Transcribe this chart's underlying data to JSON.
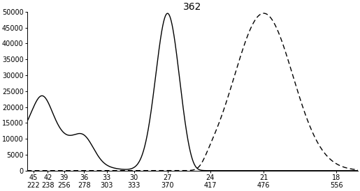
{
  "title": "362",
  "background_color": "#ffffff",
  "line_color": "#000000",
  "ylim": [
    0,
    50000
  ],
  "yticks": [
    0,
    5000,
    10000,
    15000,
    20000,
    25000,
    30000,
    35000,
    40000,
    45000,
    50000
  ],
  "xticks_kk": [
    45,
    42,
    39,
    36,
    33,
    30,
    27,
    24,
    21,
    18
  ],
  "xticks_nm": [
    222,
    238,
    256,
    278,
    303,
    333,
    370,
    417,
    476,
    556
  ],
  "xlim_nm": [
    215,
    580
  ]
}
